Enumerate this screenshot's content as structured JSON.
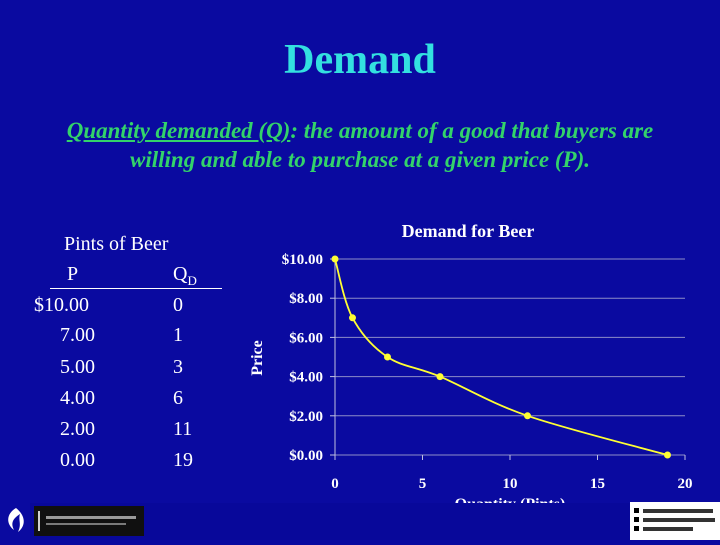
{
  "slide": {
    "title": "Demand",
    "definition_term": "Quantity demanded (Q)",
    "definition_rest": ": the amount of a good that buyers are willing and able to purchase at a given price (P)."
  },
  "table": {
    "caption": "Pints of Beer",
    "price_header": "P",
    "quantity_header": "Q",
    "quantity_subscript": "D",
    "rows": [
      {
        "price": "$10.00",
        "quantity": "0"
      },
      {
        "price": "7.00",
        "quantity": "1"
      },
      {
        "price": "5.00",
        "quantity": "3"
      },
      {
        "price": "4.00",
        "quantity": "6"
      },
      {
        "price": "2.00",
        "quantity": "11"
      },
      {
        "price": "0.00",
        "quantity": "19"
      }
    ]
  },
  "chart_data": {
    "type": "line",
    "title": "Demand for Beer",
    "xlabel": "Quantity (Pints)",
    "ylabel": "Price",
    "x": [
      0,
      1,
      3,
      6,
      11,
      19
    ],
    "y": [
      10,
      7,
      5,
      4,
      2,
      0
    ],
    "xlim": [
      0,
      20
    ],
    "ylim": [
      0,
      10
    ],
    "x_ticks": [
      "0",
      "5",
      "10",
      "15",
      "20"
    ],
    "y_ticks": [
      "$0.00",
      "$2.00",
      "$4.00",
      "$6.00",
      "$8.00",
      "$10.00"
    ],
    "grid": "horizontal",
    "line_color": "#ffff33"
  }
}
